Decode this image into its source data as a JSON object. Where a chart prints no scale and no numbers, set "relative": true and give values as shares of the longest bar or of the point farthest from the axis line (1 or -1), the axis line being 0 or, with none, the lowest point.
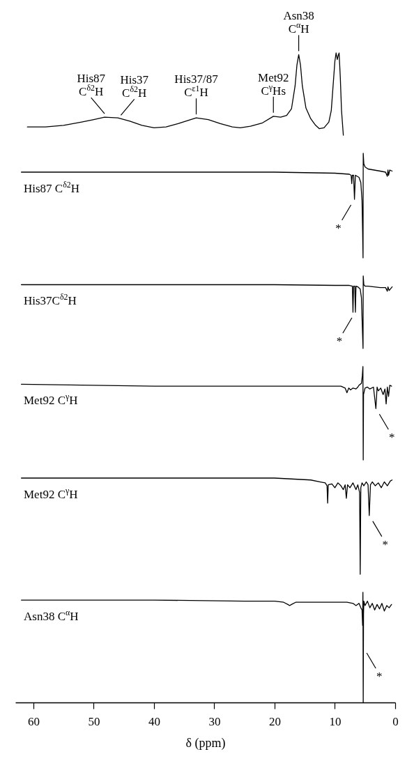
{
  "chart_data": [
    {
      "type": "line",
      "relative": true,
      "xticks": [
        60,
        50,
        40,
        30,
        20,
        10,
        0
      ],
      "tick_labels": false,
      "series": [
        {
          "color": "#000000",
          "x": [
            61,
            58,
            55,
            52,
            50,
            48.2,
            46,
            44,
            42,
            40,
            38,
            36,
            33,
            31,
            29,
            27,
            25.7,
            24,
            22,
            20.2,
            19,
            18,
            17.2,
            16.6,
            16.3,
            16,
            15.7,
            15.4,
            14.8,
            14,
            13.2,
            12.6,
            11.8,
            11,
            10.6,
            10.3,
            10,
            9.8,
            9.6,
            9.45,
            9.3,
            9.1,
            8.9,
            8.6
          ],
          "values": [
            0.1,
            0.1,
            0.12,
            0.16,
            0.19,
            0.22,
            0.21,
            0.17,
            0.12,
            0.09,
            0.1,
            0.14,
            0.21,
            0.19,
            0.14,
            0.1,
            0.09,
            0.11,
            0.15,
            0.23,
            0.22,
            0.24,
            0.32,
            0.6,
            0.85,
            0.98,
            0.85,
            0.6,
            0.33,
            0.2,
            0.12,
            0.08,
            0.09,
            0.16,
            0.3,
            0.6,
            0.9,
            1.0,
            0.92,
            0.97,
            1.0,
            0.7,
            0.3,
            0
          ]
        }
      ],
      "annotations": [
        {
          "text": "His87 C$^{δ2}$H",
          "x": 48.2,
          "y": 0.22
        },
        {
          "text": "His37 C$^{δ2}$H",
          "x": 45.5,
          "y": 0.2
        },
        {
          "text": "His37/87 C$^{ε1}$H",
          "x": 33,
          "y": 0.21
        },
        {
          "text": "Met92 C$^{γ}$Hs",
          "x": 20.2,
          "y": 0.23
        },
        {
          "text": "Asn38 C$^{α}$H",
          "x": 16,
          "y": 0.98
        }
      ]
    },
    {
      "type": "line",
      "relative": true,
      "xticks": [
        60,
        50,
        40,
        30,
        20,
        10,
        0
      ],
      "tick_labels": false,
      "series": [
        {
          "name": "His87 C$^{δ2}$H",
          "color": "#000000",
          "x": [
            62,
            40,
            20,
            10,
            7.6,
            7.3,
            7.2,
            7.1,
            6.9,
            6.75,
            6.6,
            6.3,
            6.0,
            5.7,
            5.5,
            5.4,
            5.33,
            5.3,
            5.2,
            5.0,
            4.5,
            3.5,
            2.5,
            1.6,
            1.3,
            1.2,
            1.1,
            0.9,
            0.5
          ],
          "values": [
            0.82,
            0.82,
            0.82,
            0.81,
            0.8,
            0.79,
            0.71,
            0.79,
            0.79,
            0.56,
            0.79,
            0.78,
            0.77,
            0.72,
            0.55,
            0.25,
            0,
            1.0,
            0.9,
            0.87,
            0.85,
            0.84,
            0.83,
            0.82,
            0.78,
            0.84,
            0.79,
            0.84,
            0.83
          ]
        }
      ],
      "annotations": [
        {
          "text": "*",
          "x": 6.75,
          "y": 0.56
        }
      ]
    },
    {
      "type": "line",
      "relative": true,
      "xticks": [
        60,
        50,
        40,
        30,
        20,
        10,
        0
      ],
      "tick_labels": false,
      "series": [
        {
          "name": "His37C$^{δ2}$H",
          "color": "#000000",
          "x": [
            62,
            40,
            20,
            10,
            7.6,
            7.1,
            7.0,
            6.9,
            6.7,
            6.6,
            6.5,
            6.2,
            5.8,
            5.6,
            5.45,
            5.33,
            5.3,
            5.2,
            5.0,
            4.5,
            3.5,
            2.5,
            1.6,
            1.3,
            1.2,
            1.0,
            0.5
          ],
          "values": [
            0.88,
            0.88,
            0.88,
            0.87,
            0.87,
            0.86,
            0.5,
            0.86,
            0.86,
            0.5,
            0.86,
            0.85,
            0.82,
            0.7,
            0.3,
            0,
            1.0,
            0.88,
            0.86,
            0.86,
            0.85,
            0.84,
            0.84,
            0.79,
            0.85,
            0.8,
            0.85
          ]
        }
      ],
      "annotations": [
        {
          "text": "*",
          "x": 6.6,
          "y": 0.5
        }
      ]
    },
    {
      "type": "line",
      "relative": true,
      "xticks": [
        60,
        50,
        40,
        30,
        20,
        10,
        0
      ],
      "tick_labels": false,
      "series": [
        {
          "name": "Met92 C$^{γ}$H",
          "color": "#000000",
          "x": [
            62,
            50,
            40,
            30,
            20,
            12,
            9,
            8.3,
            8.0,
            7.7,
            7.4,
            7.0,
            6.5,
            6.2,
            6.0,
            5.6,
            5.45,
            5.35,
            5.3,
            5.25,
            5.0,
            4.6,
            4.2,
            3.6,
            3.2,
            3.0,
            2.8,
            2.4,
            2.0,
            1.7,
            1.5,
            1.3,
            1.1,
            0.9,
            0.6
          ],
          "values": [
            0.81,
            0.8,
            0.79,
            0.79,
            0.79,
            0.79,
            0.79,
            0.77,
            0.72,
            0.77,
            0.75,
            0.77,
            0.76,
            0.78,
            0.8,
            0.82,
            0.9,
            1.0,
            0,
            0.7,
            0.77,
            0.78,
            0.76,
            0.78,
            0.55,
            0.78,
            0.74,
            0.77,
            0.7,
            0.76,
            0.6,
            0.78,
            0.68,
            0.8,
            0.79
          ]
        }
      ],
      "annotations": [
        {
          "text": "*",
          "x": 3.2,
          "y": 0.55
        }
      ]
    },
    {
      "type": "line",
      "relative": true,
      "xticks": [
        60,
        50,
        40,
        30,
        20,
        10,
        0
      ],
      "tick_labels": false,
      "series": [
        {
          "name": "Met92 C$^{γ}$H",
          "color": "#000000",
          "x": [
            62,
            40,
            20,
            14,
            12.4,
            11.6,
            11.3,
            11.2,
            11.1,
            10.5,
            10,
            9.5,
            9,
            8.6,
            8.3,
            8.1,
            7.9,
            7.5,
            7,
            6.5,
            6.2,
            5.9,
            5.8,
            5.7,
            5.5,
            5.2,
            4.8,
            4.5,
            4.3,
            4.1,
            3.8,
            3.3,
            2.8,
            2.3,
            1.8,
            1.3,
            0.8,
            0.5
          ],
          "values": [
            1.0,
            1.0,
            1.0,
            0.98,
            0.96,
            0.95,
            0.92,
            0.74,
            0.93,
            0.94,
            0.9,
            0.95,
            0.92,
            0.88,
            0.93,
            0.79,
            0.93,
            0.9,
            0.95,
            0.88,
            0.93,
            0.85,
            0,
            0.9,
            0.95,
            0.92,
            0.96,
            0.93,
            0.61,
            0.93,
            0.96,
            0.92,
            0.95,
            0.9,
            0.96,
            0.92,
            0.97,
            0.98
          ]
        }
      ],
      "annotations": [
        {
          "text": "*",
          "x": 4.3,
          "y": 0.61
        }
      ]
    },
    {
      "type": "line",
      "relative": true,
      "xlim": [
        63,
        0
      ],
      "xticks": [
        60,
        50,
        40,
        30,
        20,
        10,
        0
      ],
      "xlabel": "δ (ppm)",
      "tick_labels": "x",
      "series": [
        {
          "name": "Asn38 C$^{α}$H",
          "color": "#000000",
          "x": [
            62,
            40,
            25,
            20,
            18.5,
            17.8,
            17.5,
            17.2,
            16.5,
            15,
            10,
            8,
            7,
            6.5,
            6,
            5.7,
            5.5,
            5.4,
            5.35,
            5.3,
            5.25,
            5.2,
            5.0,
            4.6,
            4.2,
            3.8,
            3.4,
            3.0,
            2.6,
            2.2,
            1.8,
            1.4,
            1.0,
            0.6
          ],
          "values": [
            0.93,
            0.93,
            0.92,
            0.92,
            0.91,
            0.89,
            0.88,
            0.89,
            0.91,
            0.91,
            0.91,
            0.91,
            0.9,
            0.88,
            0.9,
            0.86,
            0.84,
            0.7,
            1.0,
            0,
            0.8,
            0.92,
            0.88,
            0.92,
            0.86,
            0.9,
            0.84,
            0.89,
            0.85,
            0.9,
            0.83,
            0.88,
            0.86,
            0.89
          ]
        }
      ],
      "annotations": [
        {
          "text": "*",
          "x": 5.3,
          "y": 0.5
        }
      ]
    }
  ]
}
